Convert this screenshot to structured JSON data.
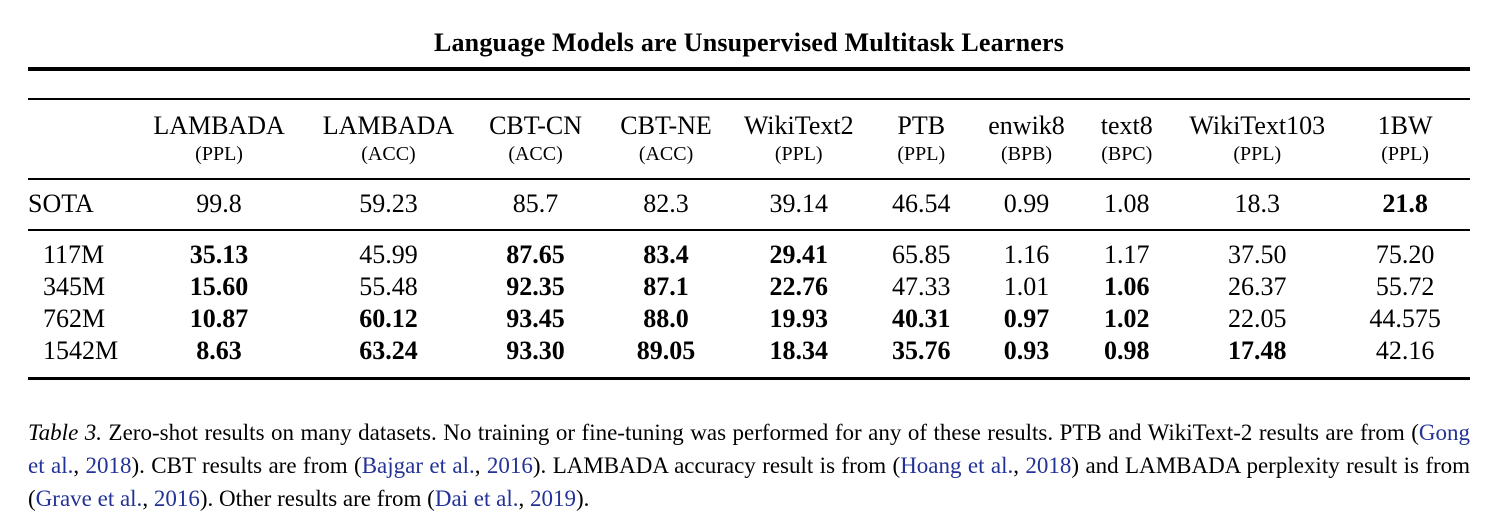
{
  "colors": {
    "link": "#233296",
    "text": "#000000",
    "rule": "#000000"
  },
  "paper_header": {
    "title": "Language Models are Unsupervised Multitask Learners"
  },
  "table": {
    "columns": [
      {
        "name": "",
        "metric": ""
      },
      {
        "name": "LAMBADA",
        "metric": "(PPL)"
      },
      {
        "name": "LAMBADA",
        "metric": "(ACC)"
      },
      {
        "name": "CBT-CN",
        "metric": "(ACC)"
      },
      {
        "name": "CBT-NE",
        "metric": "(ACC)"
      },
      {
        "name": "WikiText2",
        "metric": "(PPL)"
      },
      {
        "name": "PTB",
        "metric": "(PPL)"
      },
      {
        "name": "enwik8",
        "metric": "(BPB)"
      },
      {
        "name": "text8",
        "metric": "(BPC)"
      },
      {
        "name": "WikiText103",
        "metric": "(PPL)"
      },
      {
        "name": "1BW",
        "metric": "(PPL)"
      }
    ],
    "sota_row": {
      "label": "SOTA",
      "cells": [
        {
          "v": "99.8",
          "b": false
        },
        {
          "v": "59.23",
          "b": false
        },
        {
          "v": "85.7",
          "b": false
        },
        {
          "v": "82.3",
          "b": false
        },
        {
          "v": "39.14",
          "b": false
        },
        {
          "v": "46.54",
          "b": false
        },
        {
          "v": "0.99",
          "b": false
        },
        {
          "v": "1.08",
          "b": false
        },
        {
          "v": "18.3",
          "b": false
        },
        {
          "v": "21.8",
          "b": true
        }
      ]
    },
    "model_rows": [
      {
        "label": "117M",
        "cells": [
          {
            "v": "35.13",
            "b": true
          },
          {
            "v": "45.99",
            "b": false
          },
          {
            "v": "87.65",
            "b": true
          },
          {
            "v": "83.4",
            "b": true
          },
          {
            "v": "29.41",
            "b": true
          },
          {
            "v": "65.85",
            "b": false
          },
          {
            "v": "1.16",
            "b": false
          },
          {
            "v": "1.17",
            "b": false
          },
          {
            "v": "37.50",
            "b": false
          },
          {
            "v": "75.20",
            "b": false
          }
        ]
      },
      {
        "label": "345M",
        "cells": [
          {
            "v": "15.60",
            "b": true
          },
          {
            "v": "55.48",
            "b": false
          },
          {
            "v": "92.35",
            "b": true
          },
          {
            "v": "87.1",
            "b": true
          },
          {
            "v": "22.76",
            "b": true
          },
          {
            "v": "47.33",
            "b": false
          },
          {
            "v": "1.01",
            "b": false
          },
          {
            "v": "1.06",
            "b": true
          },
          {
            "v": "26.37",
            "b": false
          },
          {
            "v": "55.72",
            "b": false
          }
        ]
      },
      {
        "label": "762M",
        "cells": [
          {
            "v": "10.87",
            "b": true
          },
          {
            "v": "60.12",
            "b": true
          },
          {
            "v": "93.45",
            "b": true
          },
          {
            "v": "88.0",
            "b": true
          },
          {
            "v": "19.93",
            "b": true
          },
          {
            "v": "40.31",
            "b": true
          },
          {
            "v": "0.97",
            "b": true
          },
          {
            "v": "1.02",
            "b": true
          },
          {
            "v": "22.05",
            "b": false
          },
          {
            "v": "44.575",
            "b": false
          }
        ]
      },
      {
        "label": "1542M",
        "cells": [
          {
            "v": "8.63",
            "b": true
          },
          {
            "v": "63.24",
            "b": true
          },
          {
            "v": "93.30",
            "b": true
          },
          {
            "v": "89.05",
            "b": true
          },
          {
            "v": "18.34",
            "b": true
          },
          {
            "v": "35.76",
            "b": true
          },
          {
            "v": "0.93",
            "b": true
          },
          {
            "v": "0.98",
            "b": true
          },
          {
            "v": "17.48",
            "b": true
          },
          {
            "v": "42.16",
            "b": false
          }
        ]
      }
    ]
  },
  "caption": {
    "label": "Table 3.",
    "segments": [
      {
        "t": " Zero-shot results on many datasets.  No training or fine-tuning was performed for any of these results.  PTB and WikiText-2 results are from (",
        "link": false
      },
      {
        "t": "Gong et al.",
        "link": true
      },
      {
        "t": ", ",
        "link": false
      },
      {
        "t": "2018",
        "link": true
      },
      {
        "t": "). CBT results are from (",
        "link": false
      },
      {
        "t": "Bajgar et al.",
        "link": true
      },
      {
        "t": ", ",
        "link": false
      },
      {
        "t": "2016",
        "link": true
      },
      {
        "t": "). LAMBADA accuracy result is from (",
        "link": false
      },
      {
        "t": "Hoang et al.",
        "link": true
      },
      {
        "t": ", ",
        "link": false
      },
      {
        "t": "2018",
        "link": true
      },
      {
        "t": ") and LAMBADA perplexity result is from (",
        "link": false
      },
      {
        "t": "Grave et al.",
        "link": true
      },
      {
        "t": ", ",
        "link": false
      },
      {
        "t": "2016",
        "link": true
      },
      {
        "t": "). Other results are from (",
        "link": false
      },
      {
        "t": "Dai et al.",
        "link": true
      },
      {
        "t": ", ",
        "link": false
      },
      {
        "t": "2019",
        "link": true
      },
      {
        "t": ").",
        "link": false
      }
    ]
  }
}
